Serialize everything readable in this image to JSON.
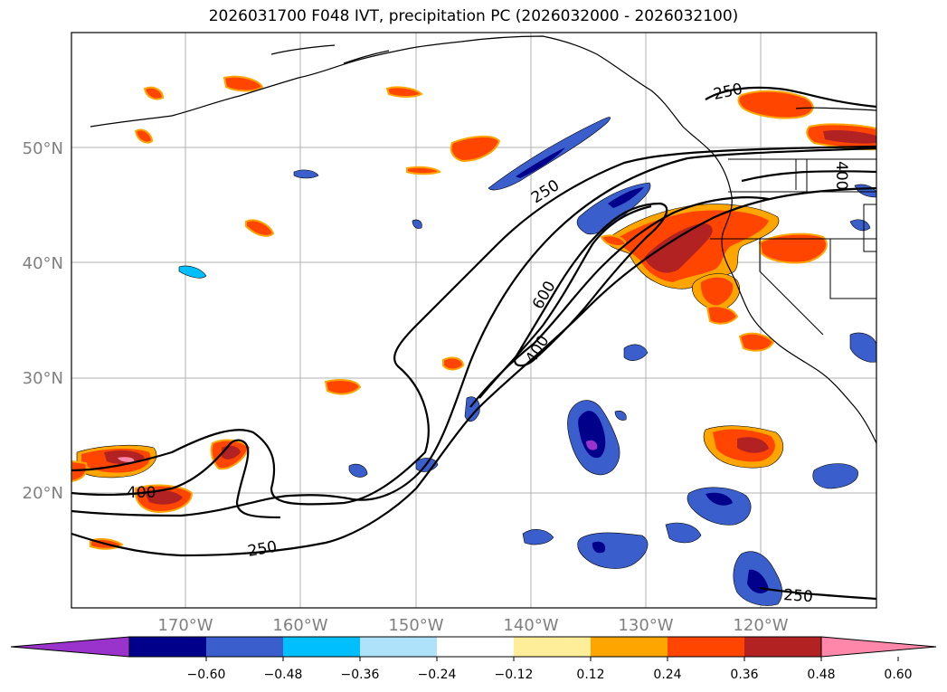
{
  "title": "2026031700 F048 IVT, precipitation PC (2026032000 - 2026032100)",
  "lat_labels": [
    "50°N",
    "40°N",
    "30°N",
    "20°N"
  ],
  "lon_labels": [
    "170°W",
    "160°W",
    "150°W",
    "140°W",
    "130°W",
    "120°W"
  ],
  "colorbar": {
    "ticks": [
      "−0.60",
      "−0.48",
      "−0.36",
      "−0.24",
      "−0.12",
      "0.12",
      "0.24",
      "0.36",
      "0.48",
      "0.60"
    ],
    "colors": [
      "#9933cc",
      "#00008b",
      "#3a5fcd",
      "#00bfff",
      "#aee2fa",
      "#ffffff",
      "#ffee99",
      "#ffa500",
      "#ff4500",
      "#b22222",
      "#ff88aa"
    ]
  },
  "contour_labels": [
    "250",
    "250",
    "250",
    "250",
    "400",
    "400",
    "600",
    "400"
  ],
  "colors": {
    "positive_high": "#b22222",
    "positive_mid": "#ff4500",
    "positive_low": "#ffa500",
    "negative_low": "#3a5fcd",
    "negative_high": "#00008b",
    "coast": "#000000",
    "grid": "#b0b0b0",
    "tick_label": "#808080"
  }
}
